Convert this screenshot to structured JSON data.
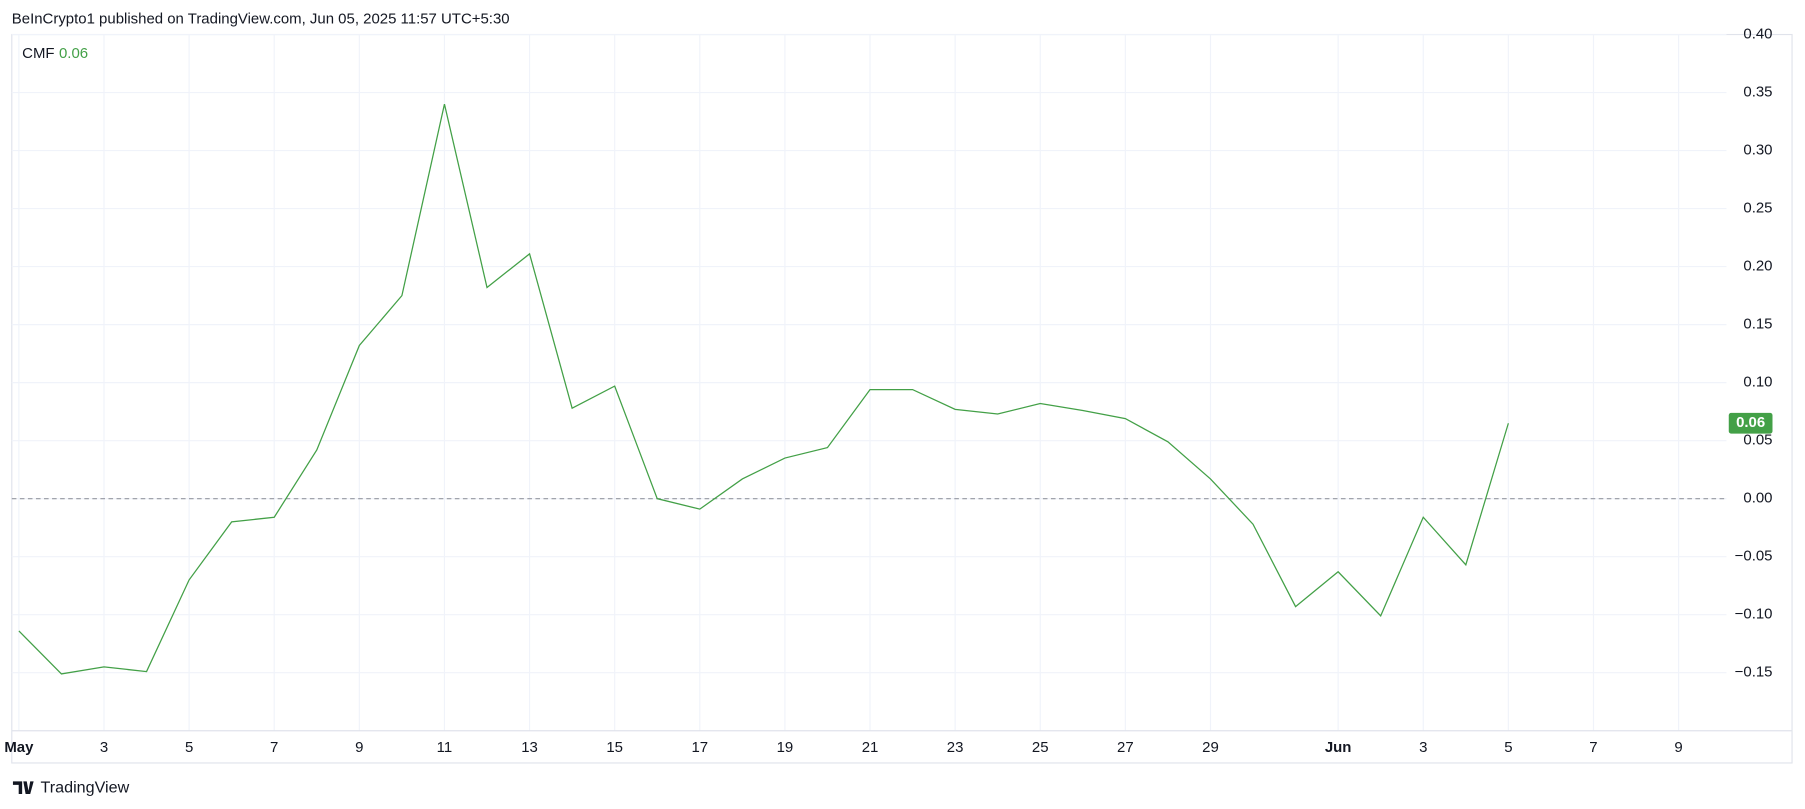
{
  "header": "BeInCrypto1 published on TradingView.com, Jun 05, 2025 11:57 UTC+5:30",
  "footer": "TradingView",
  "chart_data": {
    "type": "line",
    "indicator_name": "CMF",
    "legend_value": "0.06",
    "x": [
      "2025-05-01",
      "2025-05-02",
      "2025-05-03",
      "2025-05-04",
      "2025-05-05",
      "2025-05-06",
      "2025-05-07",
      "2025-05-08",
      "2025-05-09",
      "2025-05-10",
      "2025-05-11",
      "2025-05-12",
      "2025-05-13",
      "2025-05-14",
      "2025-05-15",
      "2025-05-16",
      "2025-05-17",
      "2025-05-18",
      "2025-05-19",
      "2025-05-20",
      "2025-05-21",
      "2025-05-22",
      "2025-05-23",
      "2025-05-24",
      "2025-05-25",
      "2025-05-26",
      "2025-05-27",
      "2025-05-28",
      "2025-05-29",
      "2025-05-30",
      "2025-05-31",
      "2025-06-01",
      "2025-06-02",
      "2025-06-03",
      "2025-06-04",
      "2025-06-05"
    ],
    "series": [
      {
        "name": "CMF",
        "color": "#43a047",
        "values": [
          -0.114,
          -0.151,
          -0.145,
          -0.149,
          -0.07,
          -0.02,
          -0.016,
          0.042,
          0.132,
          0.175,
          0.34,
          0.182,
          0.211,
          0.078,
          0.097,
          0.0,
          -0.009,
          0.017,
          0.035,
          0.044,
          0.094,
          0.094,
          0.077,
          0.073,
          0.082,
          0.076,
          0.069,
          0.049,
          0.017,
          -0.022,
          -0.093,
          -0.063,
          -0.101,
          -0.016,
          -0.057,
          0.065
        ]
      }
    ],
    "xlim": [
      "2025-04-30T20:00",
      "2025-06-10T03:00"
    ],
    "xticks": [
      {
        "value": "2025-05-01",
        "label": "May"
      },
      {
        "value": "2025-05-03",
        "label": "3"
      },
      {
        "value": "2025-05-05",
        "label": "5"
      },
      {
        "value": "2025-05-07",
        "label": "7"
      },
      {
        "value": "2025-05-09",
        "label": "9"
      },
      {
        "value": "2025-05-11",
        "label": "11"
      },
      {
        "value": "2025-05-13",
        "label": "13"
      },
      {
        "value": "2025-05-15",
        "label": "15"
      },
      {
        "value": "2025-05-17",
        "label": "17"
      },
      {
        "value": "2025-05-19",
        "label": "19"
      },
      {
        "value": "2025-05-21",
        "label": "21"
      },
      {
        "value": "2025-05-23",
        "label": "23"
      },
      {
        "value": "2025-05-25",
        "label": "25"
      },
      {
        "value": "2025-05-27",
        "label": "27"
      },
      {
        "value": "2025-05-29",
        "label": "29"
      },
      {
        "value": "2025-06-01",
        "label": "Jun"
      },
      {
        "value": "2025-06-03",
        "label": "3"
      },
      {
        "value": "2025-06-05",
        "label": "5"
      },
      {
        "value": "2025-06-07",
        "label": "7"
      },
      {
        "value": "2025-06-09",
        "label": "9"
      }
    ],
    "ylim": [
      -0.2,
      0.4
    ],
    "yticks": [
      {
        "value": 0.4,
        "label": "0.40"
      },
      {
        "value": 0.35,
        "label": "0.35"
      },
      {
        "value": 0.3,
        "label": "0.30"
      },
      {
        "value": 0.25,
        "label": "0.25"
      },
      {
        "value": 0.2,
        "label": "0.20"
      },
      {
        "value": 0.15,
        "label": "0.15"
      },
      {
        "value": 0.1,
        "label": "0.10"
      },
      {
        "value": 0.05,
        "label": "0.05"
      },
      {
        "value": 0,
        "label": "0.00"
      },
      {
        "value": -0.05,
        "label": "−0.05"
      },
      {
        "value": -0.1,
        "label": "−0.10"
      },
      {
        "value": -0.15,
        "label": "−0.15"
      }
    ],
    "grid": true,
    "zero_line": true
  }
}
